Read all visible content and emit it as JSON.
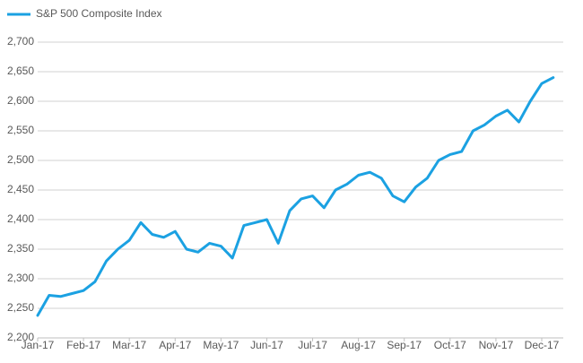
{
  "chart_data": {
    "type": "line",
    "categories": [
      "Jan-17",
      null,
      null,
      null,
      "Feb-17",
      null,
      null,
      null,
      "Mar-17",
      null,
      null,
      null,
      "Apr-17",
      null,
      null,
      null,
      "May-17",
      null,
      null,
      null,
      "Jun-17",
      null,
      null,
      null,
      "Jul-17",
      null,
      null,
      null,
      "Aug-17",
      null,
      null,
      null,
      "Sep-17",
      null,
      null,
      null,
      "Oct-17",
      null,
      null,
      null,
      "Nov-17",
      null,
      null,
      null,
      "Dec-17",
      null
    ],
    "series": [
      {
        "name": "S&P 500 Composite Index",
        "color": "#1ba1e2",
        "values": [
          2238,
          2272,
          2270,
          2275,
          2280,
          2295,
          2330,
          2350,
          2365,
          2395,
          2375,
          2370,
          2380,
          2350,
          2345,
          2360,
          2355,
          2335,
          2390,
          2395,
          2400,
          2360,
          2415,
          2435,
          2440,
          2420,
          2450,
          2460,
          2475,
          2480,
          2470,
          2440,
          2430,
          2455,
          2470,
          2500,
          2510,
          2515,
          2550,
          2560,
          2575,
          2585,
          2565,
          2600,
          2630,
          2640
        ]
      }
    ],
    "ylim": [
      2200,
      2700
    ],
    "yticks": [
      {
        "value": 2200,
        "label": "2,200"
      },
      {
        "value": 2250,
        "label": "2,250"
      },
      {
        "value": 2300,
        "label": "2,300"
      },
      {
        "value": 2350,
        "label": "2,350"
      },
      {
        "value": 2400,
        "label": "2,400"
      },
      {
        "value": 2450,
        "label": "2,450"
      },
      {
        "value": 2500,
        "label": "2,500"
      },
      {
        "value": 2550,
        "label": "2,550"
      },
      {
        "value": 2600,
        "label": "2,600"
      },
      {
        "value": 2650,
        "label": "2,650"
      },
      {
        "value": 2700,
        "label": "2,700"
      }
    ],
    "grid": true,
    "legend": "top-left"
  }
}
